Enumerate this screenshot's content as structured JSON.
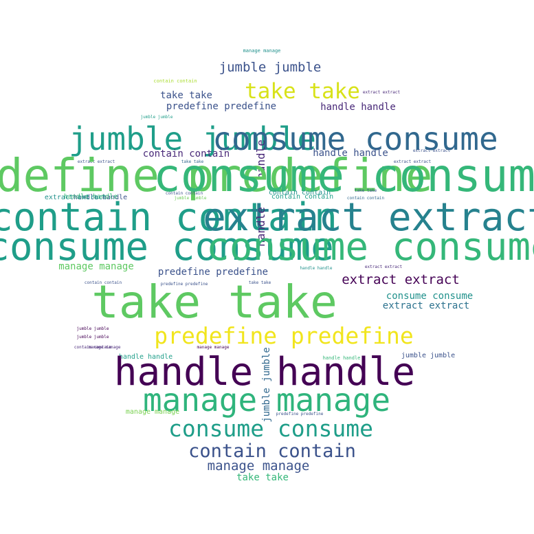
{
  "palette": {
    "background": "#ffffff",
    "dark_purple": "#440154",
    "indigo": "#3b528b",
    "teal": "#21918c",
    "green": "#27ad81",
    "light_green": "#5ec962",
    "lime": "#aadc32",
    "yellow": "#e3e418"
  },
  "words": [
    {
      "text": "manage manage",
      "color": "#21918c"
    },
    {
      "text": "jumble jumble",
      "color": "#3b528b"
    },
    {
      "text": "contain contain",
      "color": "#aadc32"
    },
    {
      "text": "take take",
      "color": "#d8e219"
    },
    {
      "text": "extract extract",
      "color": "#482878"
    },
    {
      "text": "take take",
      "color": "#3b528b"
    },
    {
      "text": "predefine predefine",
      "color": "#3b528b"
    },
    {
      "text": "handle handle",
      "color": "#482878"
    },
    {
      "text": "jumble jumble",
      "color": "#1f9e89"
    },
    {
      "text": "jumble jumble",
      "color": "#1f9e89"
    },
    {
      "text": "consume consume",
      "color": "#31688e"
    },
    {
      "text": "contain contain",
      "color": "#482878"
    },
    {
      "text": "handle handle",
      "color": "#3b528b"
    },
    {
      "text": "extract extract",
      "color": "#3b528b"
    },
    {
      "text": "take take",
      "color": "#31688e"
    },
    {
      "text": "extract extract",
      "color": "#3b528b"
    },
    {
      "text": "extract extract",
      "color": "#3b528b"
    },
    {
      "text": "handle",
      "color": "#482878"
    },
    {
      "text": "predefine predefine",
      "color": "#5ec962"
    },
    {
      "text": "consume consume",
      "color": "#35b779"
    },
    {
      "text": "handle handle",
      "color": "#3b528b"
    },
    {
      "text": "jumble jumble",
      "color": "#6ece58"
    },
    {
      "text": "contain contain",
      "color": "#1f9e89"
    },
    {
      "text": "contain contain",
      "color": "#31688e"
    },
    {
      "text": "take take",
      "color": "#3b528b"
    },
    {
      "text": "handle handle",
      "color": "#35b779"
    },
    {
      "text": "contain contain",
      "color": "#1f9e89"
    },
    {
      "text": "extract extract",
      "color": "#26828e"
    },
    {
      "text": "extract extract",
      "color": "#21918c"
    },
    {
      "text": "contain contain",
      "color": "#3b528b"
    },
    {
      "text": "contain contain",
      "color": "#21918c"
    },
    {
      "text": "handle",
      "color": "#482878"
    },
    {
      "text": "consume consume",
      "color": "#1f9e89"
    },
    {
      "text": "manage manage",
      "color": "#5ec962"
    },
    {
      "text": "predefine predefine",
      "color": "#3b528b"
    },
    {
      "text": "handle handle",
      "color": "#21918c"
    },
    {
      "text": "extract extract",
      "color": "#482878"
    },
    {
      "text": "contain contain",
      "color": "#3b528b"
    },
    {
      "text": "predefine predefine",
      "color": "#3b528b"
    },
    {
      "text": "take take",
      "color": "#3b528b"
    },
    {
      "text": "extract extract",
      "color": "#440154"
    },
    {
      "text": "take take",
      "color": "#5ec962"
    },
    {
      "text": "consume consume",
      "color": "#21918c"
    },
    {
      "text": "extract extract",
      "color": "#2c728e"
    },
    {
      "text": "consume consume",
      "color": "#35b779"
    },
    {
      "text": "manage manage",
      "color": "#482878"
    },
    {
      "text": "jumble jumble",
      "color": "#440154"
    },
    {
      "text": "jumble jumble",
      "color": "#440154"
    },
    {
      "text": "predefine predefine",
      "color": "#f1e51d"
    },
    {
      "text": "contain contain",
      "color": "#482878"
    },
    {
      "text": "handle handle",
      "color": "#1f9e89"
    },
    {
      "text": "manage manage",
      "color": "#440154"
    },
    {
      "text": "handle handle",
      "color": "#35b779"
    },
    {
      "text": "jumble jumble",
      "color": "#3b528b"
    },
    {
      "text": "handle handle",
      "color": "#440154"
    },
    {
      "text": "manage manage",
      "color": "#2fb47c"
    },
    {
      "text": "manage manage",
      "color": "#7ad151"
    },
    {
      "text": "jumble jumble",
      "color": "#31688e"
    },
    {
      "text": "predefine predefine",
      "color": "#3b528b"
    },
    {
      "text": "consume consume",
      "color": "#1f9e89"
    },
    {
      "text": "contain contain",
      "color": "#3b528b"
    },
    {
      "text": "manage manage",
      "color": "#3b528b"
    },
    {
      "text": "take take",
      "color": "#35b779"
    }
  ]
}
